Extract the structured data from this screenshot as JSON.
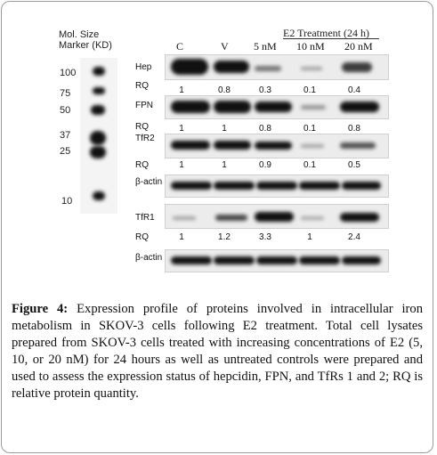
{
  "marker": {
    "title_line1": "Mol. Size",
    "title_line2": "Marker (KD)",
    "sizes": [
      "100",
      "75",
      "50",
      "37",
      "25",
      "10"
    ]
  },
  "treatment": {
    "header": "E2 Treatment (24 h)",
    "columns": [
      "C",
      "V",
      "5 nM",
      "10 nM",
      "20 nM"
    ]
  },
  "blots": [
    {
      "label": "Hep",
      "rq_label": "RQ",
      "rq": [
        "1",
        "0.8",
        "0.3",
        "0.1",
        "0.4"
      ]
    },
    {
      "label": "FPN",
      "rq_label": "RQ",
      "rq": [
        "1",
        "1",
        "0.8",
        "0.1",
        "0.8"
      ]
    },
    {
      "label": "TfR2",
      "rq_label": "RQ",
      "rq": [
        "1",
        "1",
        "0.9",
        "0.1",
        "0.5"
      ]
    },
    {
      "label": "β-actin"
    },
    {
      "label": "TfR1",
      "rq_label": "RQ",
      "rq": [
        "1",
        "1.2",
        "3.3",
        "1",
        "2.4"
      ]
    },
    {
      "label": "β-actin"
    }
  ],
  "caption": {
    "prefix": "Figure 4:",
    "text": " Expression profile of proteins involved in intracellular iron metabolism in SKOV-3 cells following E2 treatment. Total cell lysates prepared from SKOV-3 cells treated with increasing concentrations of E2 (5, 10, or 20 nM) for 24 hours as well as untreated controls were prepared and used to assess the expression status of hepcidin, FPN, and TfRs 1 and 2; RQ is relative protein quantity."
  }
}
